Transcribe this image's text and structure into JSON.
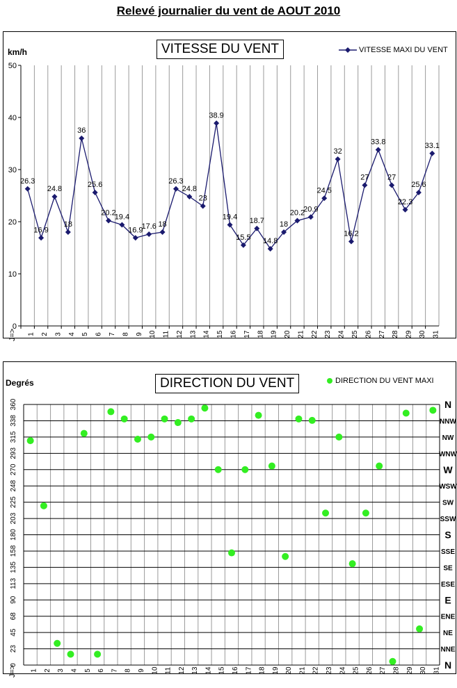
{
  "title": "Relevé journalier du vent de AOUT 2010",
  "chart_data": [
    {
      "type": "line",
      "title": "VITESSE DU VENT",
      "ylabel": "km/h",
      "xlabel": "J=>",
      "ylim": [
        0,
        50
      ],
      "yticks": [
        0,
        10,
        20,
        30,
        40,
        50
      ],
      "categories": [
        "1",
        "2",
        "3",
        "4",
        "5",
        "6",
        "7",
        "8",
        "9",
        "10",
        "11",
        "12",
        "13",
        "14",
        "15",
        "16",
        "17",
        "18",
        "19",
        "20",
        "21",
        "22",
        "23",
        "24",
        "25",
        "26",
        "27",
        "28",
        "29",
        "30",
        "31"
      ],
      "series": [
        {
          "name": "VITESSE MAXI DU VENT",
          "color": "#1a1a6e",
          "values": [
            26.3,
            16.9,
            24.8,
            18,
            36,
            25.6,
            20.2,
            19.4,
            16.9,
            17.6,
            18,
            26.3,
            24.8,
            23,
            38.9,
            19.4,
            15.5,
            18.7,
            14.8,
            18,
            20.2,
            20.9,
            24.5,
            32,
            16.2,
            27,
            33.8,
            27,
            22.3,
            25.6,
            33.1
          ]
        }
      ],
      "grid": true,
      "legend": "top-right"
    },
    {
      "type": "scatter",
      "title": "DIRECTION DU VENT",
      "ylabel": "Degrés",
      "xlabel": "J=>",
      "ylim": [
        0,
        360
      ],
      "yticks": [
        "0",
        "23",
        "45",
        "68",
        "90",
        "113",
        "135",
        "158",
        "180",
        "203",
        "225",
        "248",
        "270",
        "293",
        "315",
        "338",
        "360"
      ],
      "compass": [
        "N",
        "NNE",
        "NE",
        "ENE",
        "E",
        "ESE",
        "SE",
        "SSE",
        "S",
        "SSW",
        "SW",
        "WSW",
        "W",
        "WNW",
        "NW",
        "NNW",
        "N"
      ],
      "categories": [
        "1",
        "2",
        "3",
        "4",
        "5",
        "6",
        "7",
        "8",
        "9",
        "10",
        "11",
        "12",
        "13",
        "14",
        "15",
        "16",
        "17",
        "18",
        "19",
        "20",
        "21",
        "22",
        "23",
        "24",
        "25",
        "26",
        "27",
        "28",
        "29",
        "30",
        "31"
      ],
      "series": [
        {
          "name": "DIRECTION DU VENT MAXI",
          "color": "#33ee22",
          "values": [
            310,
            220,
            30,
            15,
            320,
            15,
            350,
            340,
            312,
            315,
            340,
            335,
            340,
            355,
            270,
            155,
            270,
            345,
            275,
            150,
            340,
            338,
            210,
            315,
            140,
            210,
            275,
            5,
            348,
            50,
            352
          ]
        }
      ],
      "grid": true,
      "legend": "top-right"
    }
  ]
}
